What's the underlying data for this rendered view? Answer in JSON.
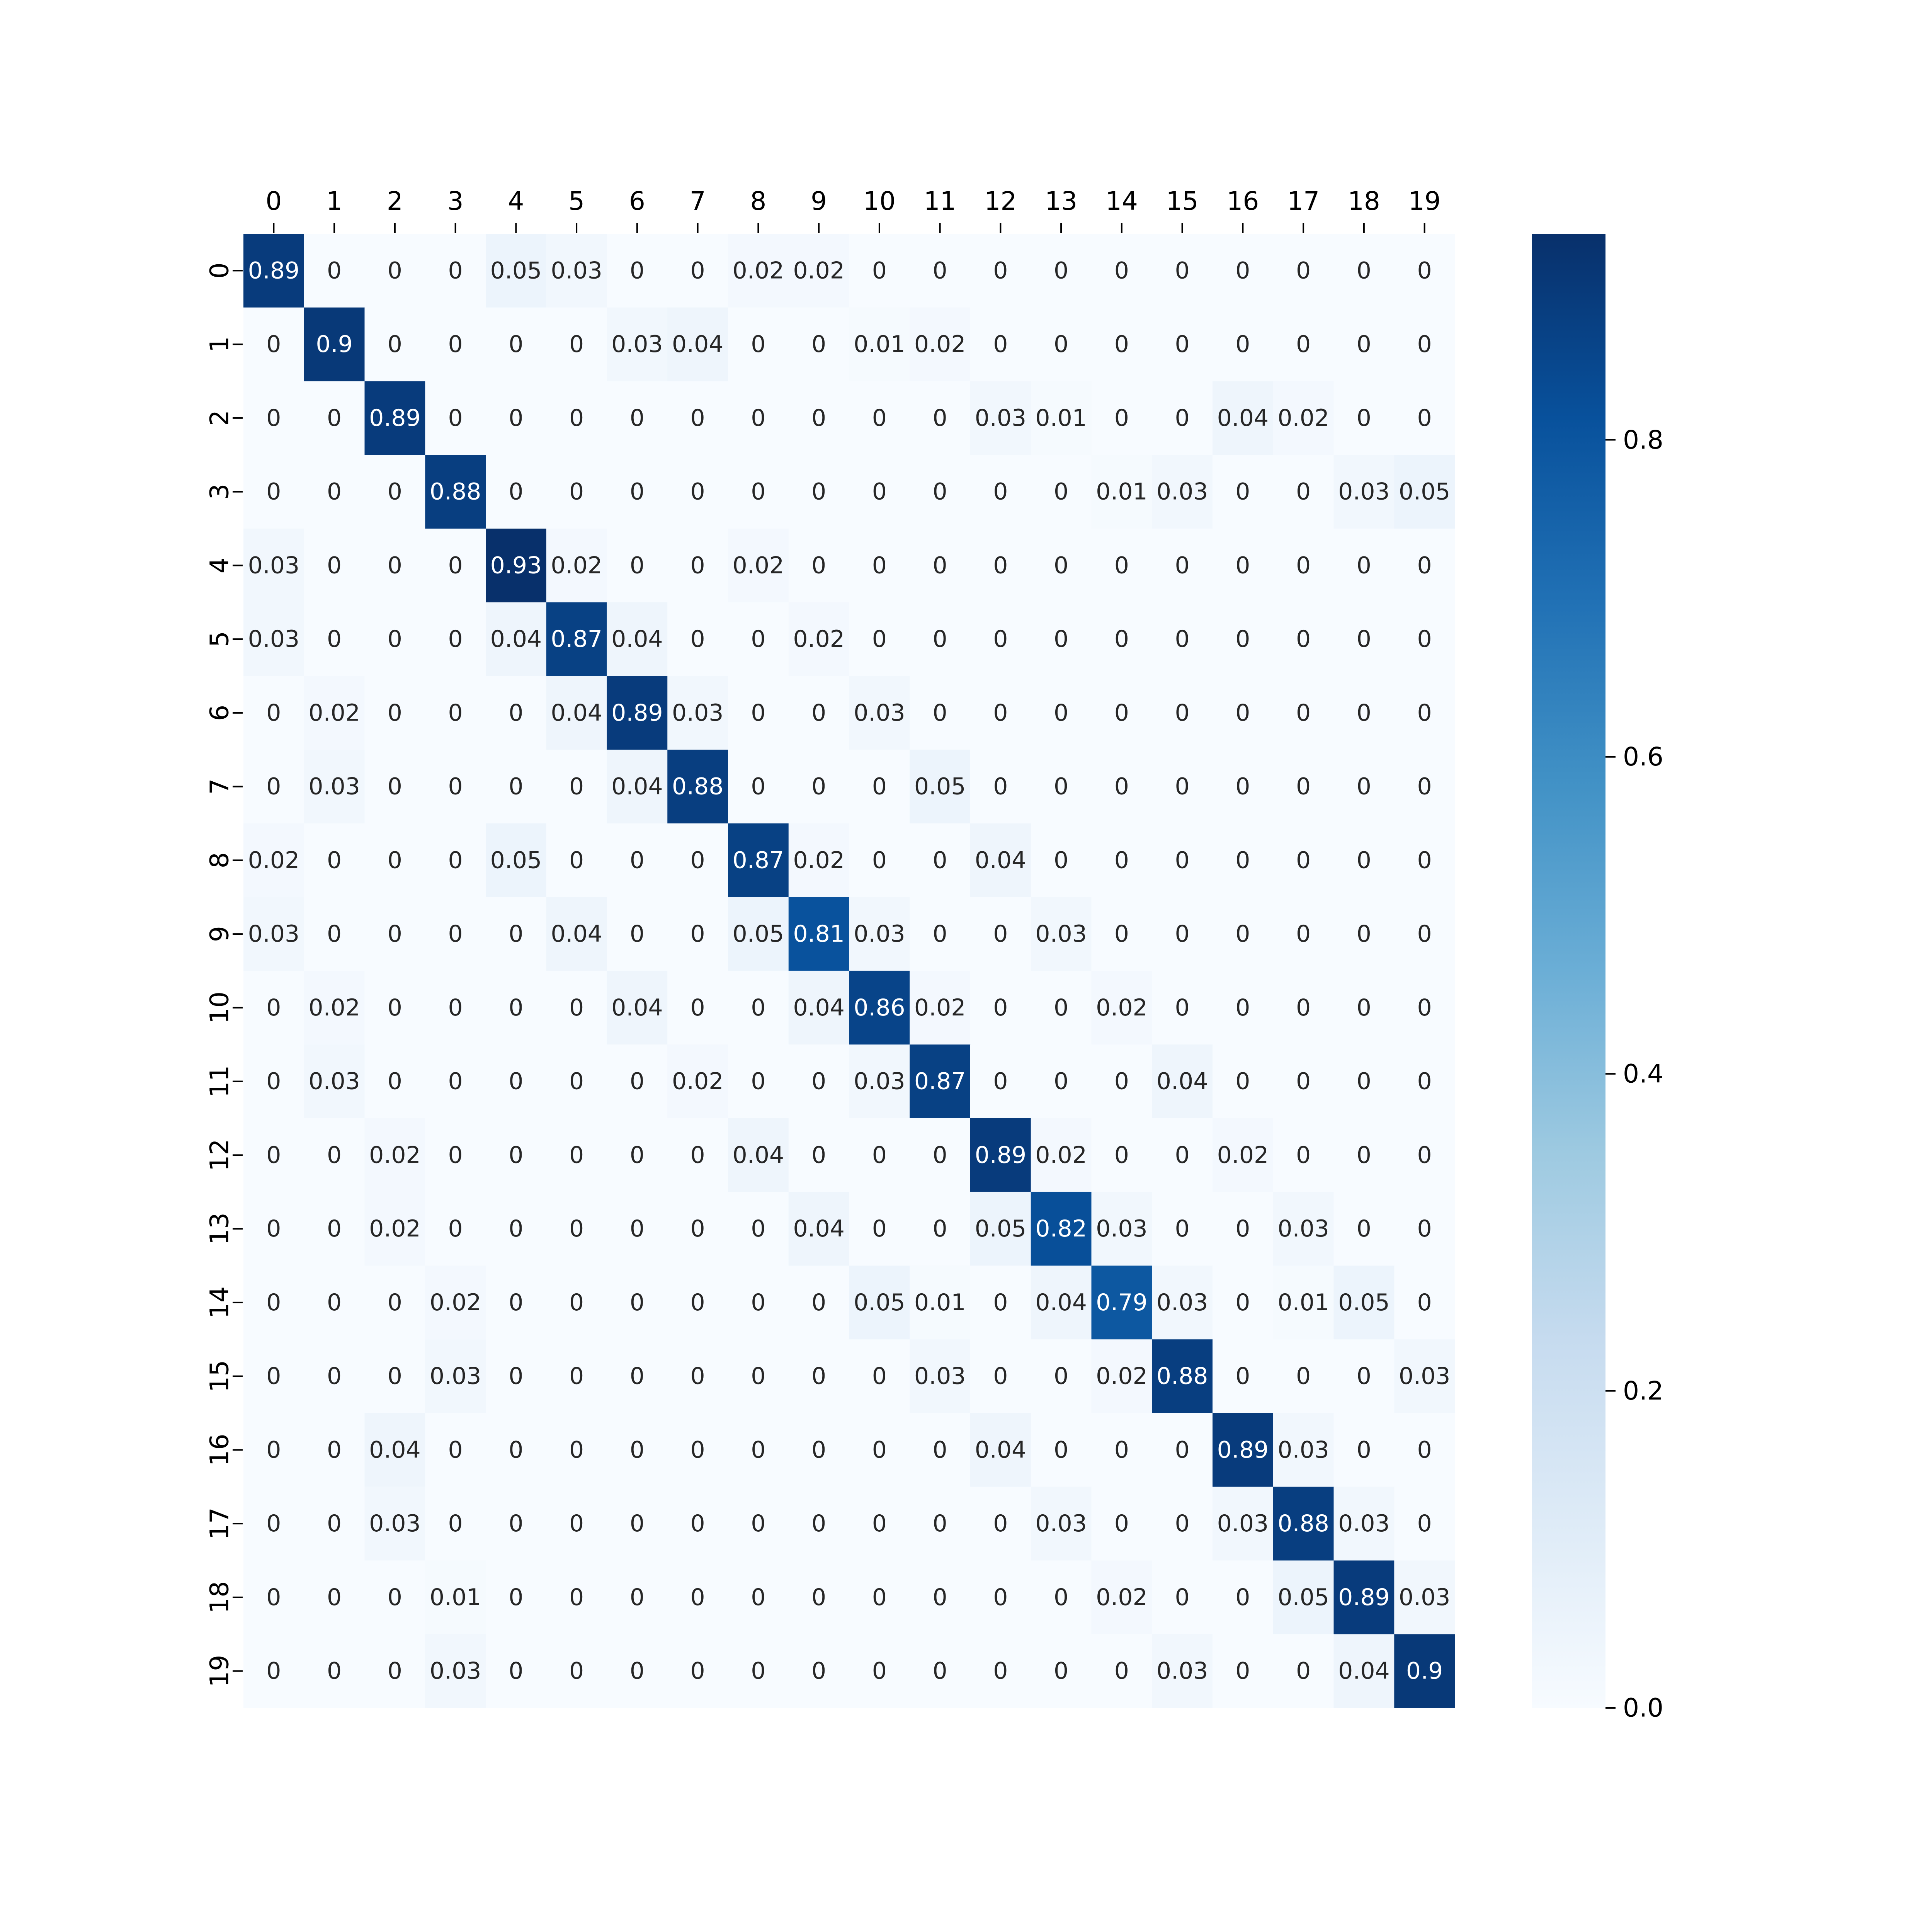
{
  "chart_data": {
    "type": "heatmap",
    "title": "",
    "xlabel": "",
    "ylabel": "",
    "x_tick_position": "top",
    "x_categories": [
      "0",
      "1",
      "2",
      "3",
      "4",
      "5",
      "6",
      "7",
      "8",
      "9",
      "10",
      "11",
      "12",
      "13",
      "14",
      "15",
      "16",
      "17",
      "18",
      "19"
    ],
    "y_categories": [
      "0",
      "1",
      "2",
      "3",
      "4",
      "5",
      "6",
      "7",
      "8",
      "9",
      "10",
      "11",
      "12",
      "13",
      "14",
      "15",
      "16",
      "17",
      "18",
      "19"
    ],
    "values": [
      [
        0.89,
        0,
        0,
        0,
        0.05,
        0.03,
        0,
        0,
        0.02,
        0.02,
        0,
        0,
        0,
        0,
        0,
        0,
        0,
        0,
        0,
        0
      ],
      [
        0,
        0.9,
        0,
        0,
        0,
        0,
        0.03,
        0.04,
        0,
        0,
        0.01,
        0.02,
        0,
        0,
        0,
        0,
        0,
        0,
        0,
        0
      ],
      [
        0,
        0,
        0.89,
        0,
        0,
        0,
        0,
        0,
        0,
        0,
        0,
        0,
        0.03,
        0.01,
        0,
        0,
        0.04,
        0.02,
        0,
        0
      ],
      [
        0,
        0,
        0,
        0.88,
        0,
        0,
        0,
        0,
        0,
        0,
        0,
        0,
        0,
        0,
        0.01,
        0.03,
        0,
        0,
        0.03,
        0.05
      ],
      [
        0.03,
        0,
        0,
        0,
        0.93,
        0.02,
        0,
        0,
        0.02,
        0,
        0,
        0,
        0,
        0,
        0,
        0,
        0,
        0,
        0,
        0
      ],
      [
        0.03,
        0,
        0,
        0,
        0.04,
        0.87,
        0.04,
        0,
        0,
        0.02,
        0,
        0,
        0,
        0,
        0,
        0,
        0,
        0,
        0,
        0
      ],
      [
        0,
        0.02,
        0,
        0,
        0,
        0.04,
        0.89,
        0.03,
        0,
        0,
        0.03,
        0,
        0,
        0,
        0,
        0,
        0,
        0,
        0,
        0
      ],
      [
        0,
        0.03,
        0,
        0,
        0,
        0,
        0.04,
        0.88,
        0,
        0,
        0,
        0.05,
        0,
        0,
        0,
        0,
        0,
        0,
        0,
        0
      ],
      [
        0.02,
        0,
        0,
        0,
        0.05,
        0,
        0,
        0,
        0.87,
        0.02,
        0,
        0,
        0.04,
        0,
        0,
        0,
        0,
        0,
        0,
        0
      ],
      [
        0.03,
        0,
        0,
        0,
        0,
        0.04,
        0,
        0,
        0.05,
        0.81,
        0.03,
        0,
        0,
        0.03,
        0,
        0,
        0,
        0,
        0,
        0
      ],
      [
        0,
        0.02,
        0,
        0,
        0,
        0,
        0.04,
        0,
        0,
        0.04,
        0.86,
        0.02,
        0,
        0,
        0.02,
        0,
        0,
        0,
        0,
        0
      ],
      [
        0,
        0.03,
        0,
        0,
        0,
        0,
        0,
        0.02,
        0,
        0,
        0.03,
        0.87,
        0,
        0,
        0,
        0.04,
        0,
        0,
        0,
        0
      ],
      [
        0,
        0,
        0.02,
        0,
        0,
        0,
        0,
        0,
        0.04,
        0,
        0,
        0,
        0.89,
        0.02,
        0,
        0,
        0.02,
        0,
        0,
        0
      ],
      [
        0,
        0,
        0.02,
        0,
        0,
        0,
        0,
        0,
        0,
        0.04,
        0,
        0,
        0.05,
        0.82,
        0.03,
        0,
        0,
        0.03,
        0,
        0
      ],
      [
        0,
        0,
        0,
        0.02,
        0,
        0,
        0,
        0,
        0,
        0,
        0.05,
        0.01,
        0,
        0.04,
        0.79,
        0.03,
        0,
        0.01,
        0.05,
        0
      ],
      [
        0,
        0,
        0,
        0.03,
        0,
        0,
        0,
        0,
        0,
        0,
        0,
        0.03,
        0,
        0,
        0.02,
        0.88,
        0,
        0,
        0,
        0.03
      ],
      [
        0,
        0,
        0.04,
        0,
        0,
        0,
        0,
        0,
        0,
        0,
        0,
        0,
        0.04,
        0,
        0,
        0,
        0.89,
        0.03,
        0,
        0
      ],
      [
        0,
        0,
        0.03,
        0,
        0,
        0,
        0,
        0,
        0,
        0,
        0,
        0,
        0,
        0.03,
        0,
        0,
        0.03,
        0.88,
        0.03,
        0
      ],
      [
        0,
        0,
        0,
        0.01,
        0,
        0,
        0,
        0,
        0,
        0,
        0,
        0,
        0,
        0,
        0.02,
        0,
        0,
        0.05,
        0.89,
        0.03
      ],
      [
        0,
        0,
        0,
        0.03,
        0,
        0,
        0,
        0,
        0,
        0,
        0,
        0,
        0,
        0,
        0,
        0.03,
        0,
        0,
        0.04,
        0.9
      ]
    ],
    "colormap": "Blues",
    "colormap_stops": [
      "#f7fbff",
      "#deebf7",
      "#c6dbef",
      "#9ecae1",
      "#6baed6",
      "#4292c6",
      "#2171b5",
      "#08519c",
      "#08306b"
    ],
    "value_range": [
      0,
      0.93
    ],
    "annotations": true,
    "grid": false,
    "colorbar": {
      "position": "right",
      "ticks": [
        "0.0",
        "0.2",
        "0.4",
        "0.6",
        "0.8"
      ],
      "tick_values": [
        0,
        0.2,
        0.4,
        0.6,
        0.8
      ]
    }
  }
}
